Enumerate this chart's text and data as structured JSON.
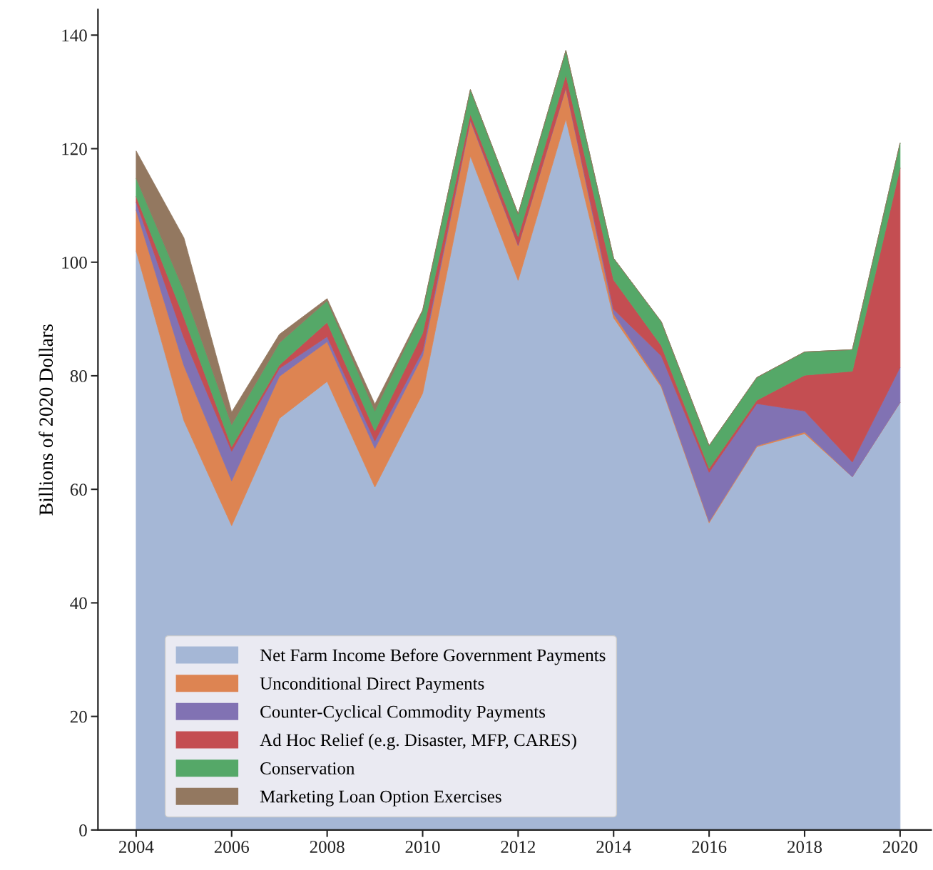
{
  "chart_data": {
    "type": "area",
    "stacked": true,
    "ylabel": "Billions of 2020 Dollars",
    "x": [
      2004,
      2005,
      2006,
      2007,
      2008,
      2009,
      2010,
      2011,
      2012,
      2013,
      2014,
      2015,
      2016,
      2017,
      2018,
      2019,
      2020
    ],
    "series": [
      {
        "name": "Net Farm Income Before Government Payments",
        "color": "#a5b7d6",
        "values": [
          102.0,
          72.1,
          53.6,
          72.5,
          79.0,
          60.4,
          76.9,
          118.7,
          96.8,
          125.2,
          90.2,
          78.0,
          54.1,
          67.5,
          69.8,
          62.2,
          75.3
        ]
      },
      {
        "name": "Unconditional Direct Payments",
        "color": "#dd8452",
        "values": [
          7.2,
          9.7,
          7.9,
          7.4,
          7.0,
          6.8,
          6.6,
          6.2,
          6.1,
          5.5,
          0.7,
          0.3,
          0.2,
          0.2,
          0.3,
          0,
          0
        ]
      },
      {
        "name": "Counter-Cyclical Commodity Payments",
        "color": "#8172b3",
        "values": [
          1.4,
          4.9,
          5.2,
          1.4,
          0.9,
          1.3,
          0.9,
          0.2,
          0.1,
          0.1,
          0.8,
          5.2,
          8.7,
          7.4,
          3.7,
          2.6,
          6.2
        ]
      },
      {
        "name": "Ad Hoc Relief (e.g. Disaster, MFP, CARES)",
        "color": "#c44e52",
        "values": [
          1.0,
          3.6,
          0.8,
          0.6,
          2.5,
          1.8,
          3.1,
          1.0,
          1.5,
          2.2,
          5.2,
          1.8,
          0.7,
          0.6,
          6.3,
          16.0,
          35.1
        ]
      },
      {
        "name": "Conservation",
        "color": "#55a868",
        "values": [
          3.2,
          4.7,
          3.9,
          3.9,
          3.8,
          3.5,
          3.9,
          4.3,
          4.0,
          4.3,
          3.8,
          4.2,
          4.0,
          4.0,
          4.1,
          3.8,
          4.4
        ]
      },
      {
        "name": "Marketing Loan Option Exercises",
        "color": "#937860",
        "values": [
          4.8,
          9.3,
          2.2,
          1.5,
          0.4,
          1.2,
          0.2,
          0,
          0,
          0,
          0,
          0,
          0,
          0,
          0,
          0,
          0
        ]
      }
    ],
    "xlim": [
      2003.2,
      2020.65
    ],
    "ylim": [
      0,
      144.5
    ],
    "xticks": [
      2004,
      2006,
      2008,
      2010,
      2012,
      2014,
      2016,
      2018,
      2020
    ],
    "yticks": [
      0,
      20,
      40,
      60,
      80,
      100,
      120,
      140
    ],
    "grid": false,
    "legend": "bottom left"
  }
}
